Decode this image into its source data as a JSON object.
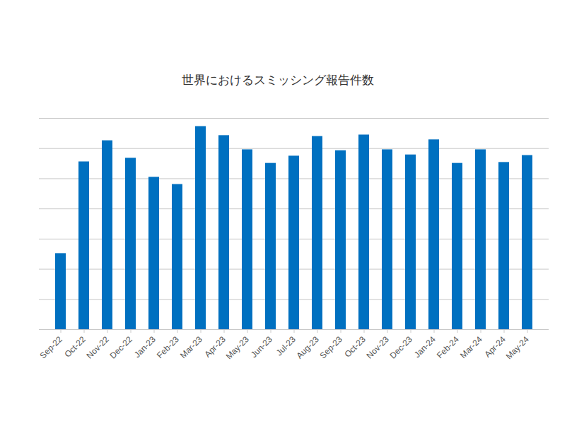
{
  "chart_data": {
    "type": "bar",
    "title": "世界におけるスミッシング報告件数",
    "categories": [
      "Sep-22",
      "Oct-22",
      "Nov-22",
      "Dec-22",
      "Jan-23",
      "Feb-23",
      "Mar-23",
      "Apr-23",
      "May-23",
      "Jun-23",
      "Jul-23",
      "Aug-23",
      "Sep-23",
      "Oct-23",
      "Nov-23",
      "Dec-23",
      "Jan-24",
      "Feb-24",
      "Mar-24",
      "Apr-24",
      "May-24"
    ],
    "values": [
      2.52,
      5.56,
      6.26,
      5.68,
      5.05,
      4.81,
      6.73,
      6.43,
      5.96,
      5.51,
      5.75,
      6.4,
      5.93,
      6.45,
      5.96,
      5.79,
      6.29,
      5.51,
      5.96,
      5.54,
      5.77
    ],
    "color": "#0070c0",
    "ylim": [
      0,
      7
    ],
    "yticks": [
      0,
      1,
      2,
      3,
      4,
      5,
      6,
      7
    ],
    "grid": true,
    "tick_labels": "x"
  }
}
